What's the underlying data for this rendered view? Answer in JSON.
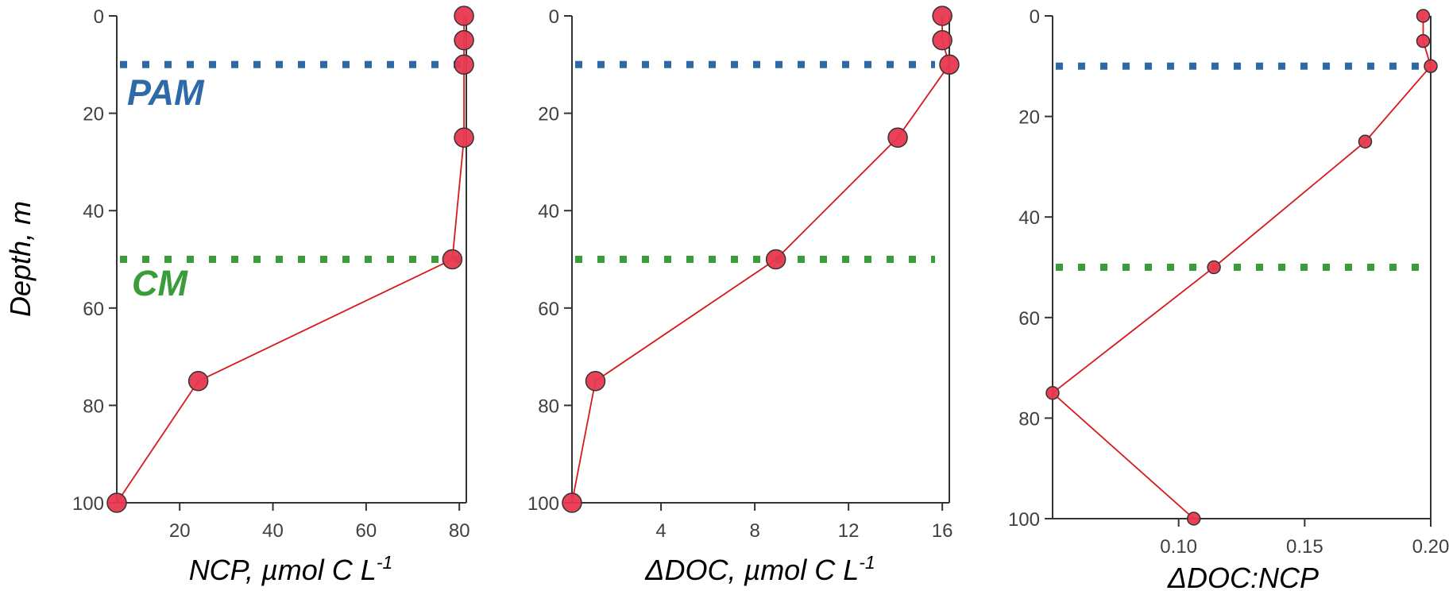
{
  "colors": {
    "series": "#e8384f",
    "series_line": "#d7191c",
    "marker_edge": "#333333",
    "pam": "#2e6aa8",
    "cm": "#3a9c3a",
    "axis": "#333333",
    "tick_text": "#404040"
  },
  "chart_data": [
    {
      "type": "line",
      "xlabel": "NCP, µmol C L",
      "xlabel_sup": "-1",
      "ylabel": "Depth, m",
      "xlim": [
        6.5,
        81.5
      ],
      "ylim": [
        100,
        0
      ],
      "y_inverted": true,
      "xticks": [
        "20",
        "40",
        "60",
        "80"
      ],
      "yticks": [
        "0",
        "20",
        "40",
        "60",
        "80",
        "100"
      ],
      "grid": false,
      "series": [
        {
          "x": [
            81,
            81,
            81,
            81,
            78.5,
            24,
            6.5
          ],
          "y": [
            0,
            5,
            10,
            25,
            50,
            75,
            100
          ]
        }
      ],
      "reference_lines": [
        {
          "label": "PAM",
          "y": 10,
          "color": "#2e6aa8"
        },
        {
          "label": "CM",
          "y": 50,
          "color": "#3a9c3a"
        }
      ]
    },
    {
      "type": "line",
      "xlabel": "ΔDOC, µmol C L",
      "xlabel_sup": "-1",
      "ylabel": "",
      "xlim": [
        0.2,
        16.3
      ],
      "ylim": [
        100,
        0
      ],
      "y_inverted": true,
      "xticks": [
        "4",
        "8",
        "12",
        "16"
      ],
      "yticks": [
        "0",
        "20",
        "40",
        "60",
        "80",
        "100"
      ],
      "grid": false,
      "series": [
        {
          "x": [
            16.0,
            16.0,
            16.3,
            14.1,
            8.9,
            1.2,
            0.2
          ],
          "y": [
            0,
            5,
            10,
            25,
            50,
            75,
            100
          ]
        }
      ],
      "reference_lines": [
        {
          "y": 10,
          "color": "#2e6aa8"
        },
        {
          "y": 50,
          "color": "#3a9c3a"
        }
      ]
    },
    {
      "type": "line",
      "xlabel": "ΔDOC:NCP",
      "ylabel": "",
      "xlim": [
        0.05,
        0.2
      ],
      "ylim": [
        100,
        0
      ],
      "y_inverted": true,
      "xticks": [
        "0.10",
        "0.15",
        "0.20"
      ],
      "yticks": [
        "0",
        "20",
        "40",
        "60",
        "80",
        "100"
      ],
      "grid": false,
      "series": [
        {
          "x": [
            0.197,
            0.197,
            0.2,
            0.174,
            0.114,
            0.05,
            0.106
          ],
          "y": [
            0,
            5,
            10,
            25,
            50,
            75,
            100
          ]
        }
      ],
      "reference_lines": [
        {
          "y": 10,
          "color": "#2e6aa8"
        },
        {
          "y": 50,
          "color": "#3a9c3a"
        }
      ]
    }
  ]
}
